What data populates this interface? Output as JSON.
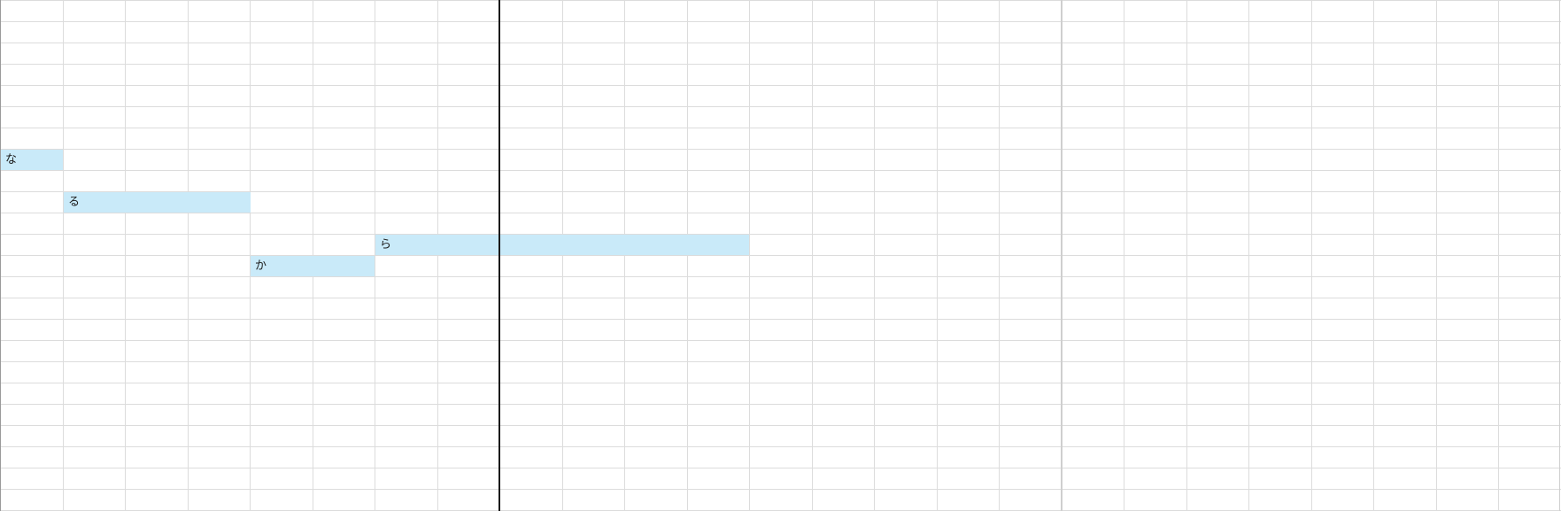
{
  "grid": {
    "columns": 25,
    "rows": 24,
    "line_color": "#dcdcdc",
    "highlight_color": "#c9eaf9"
  },
  "blocks": [
    {
      "label": "な",
      "row": 7,
      "col_start": 0,
      "col_span": 1
    },
    {
      "label": "る",
      "row": 9,
      "col_start": 1,
      "col_span": 3
    },
    {
      "label": "ら",
      "row": 11,
      "col_start": 6,
      "col_span": 6
    },
    {
      "label": "か",
      "row": 12,
      "col_start": 4,
      "col_span": 2
    }
  ]
}
